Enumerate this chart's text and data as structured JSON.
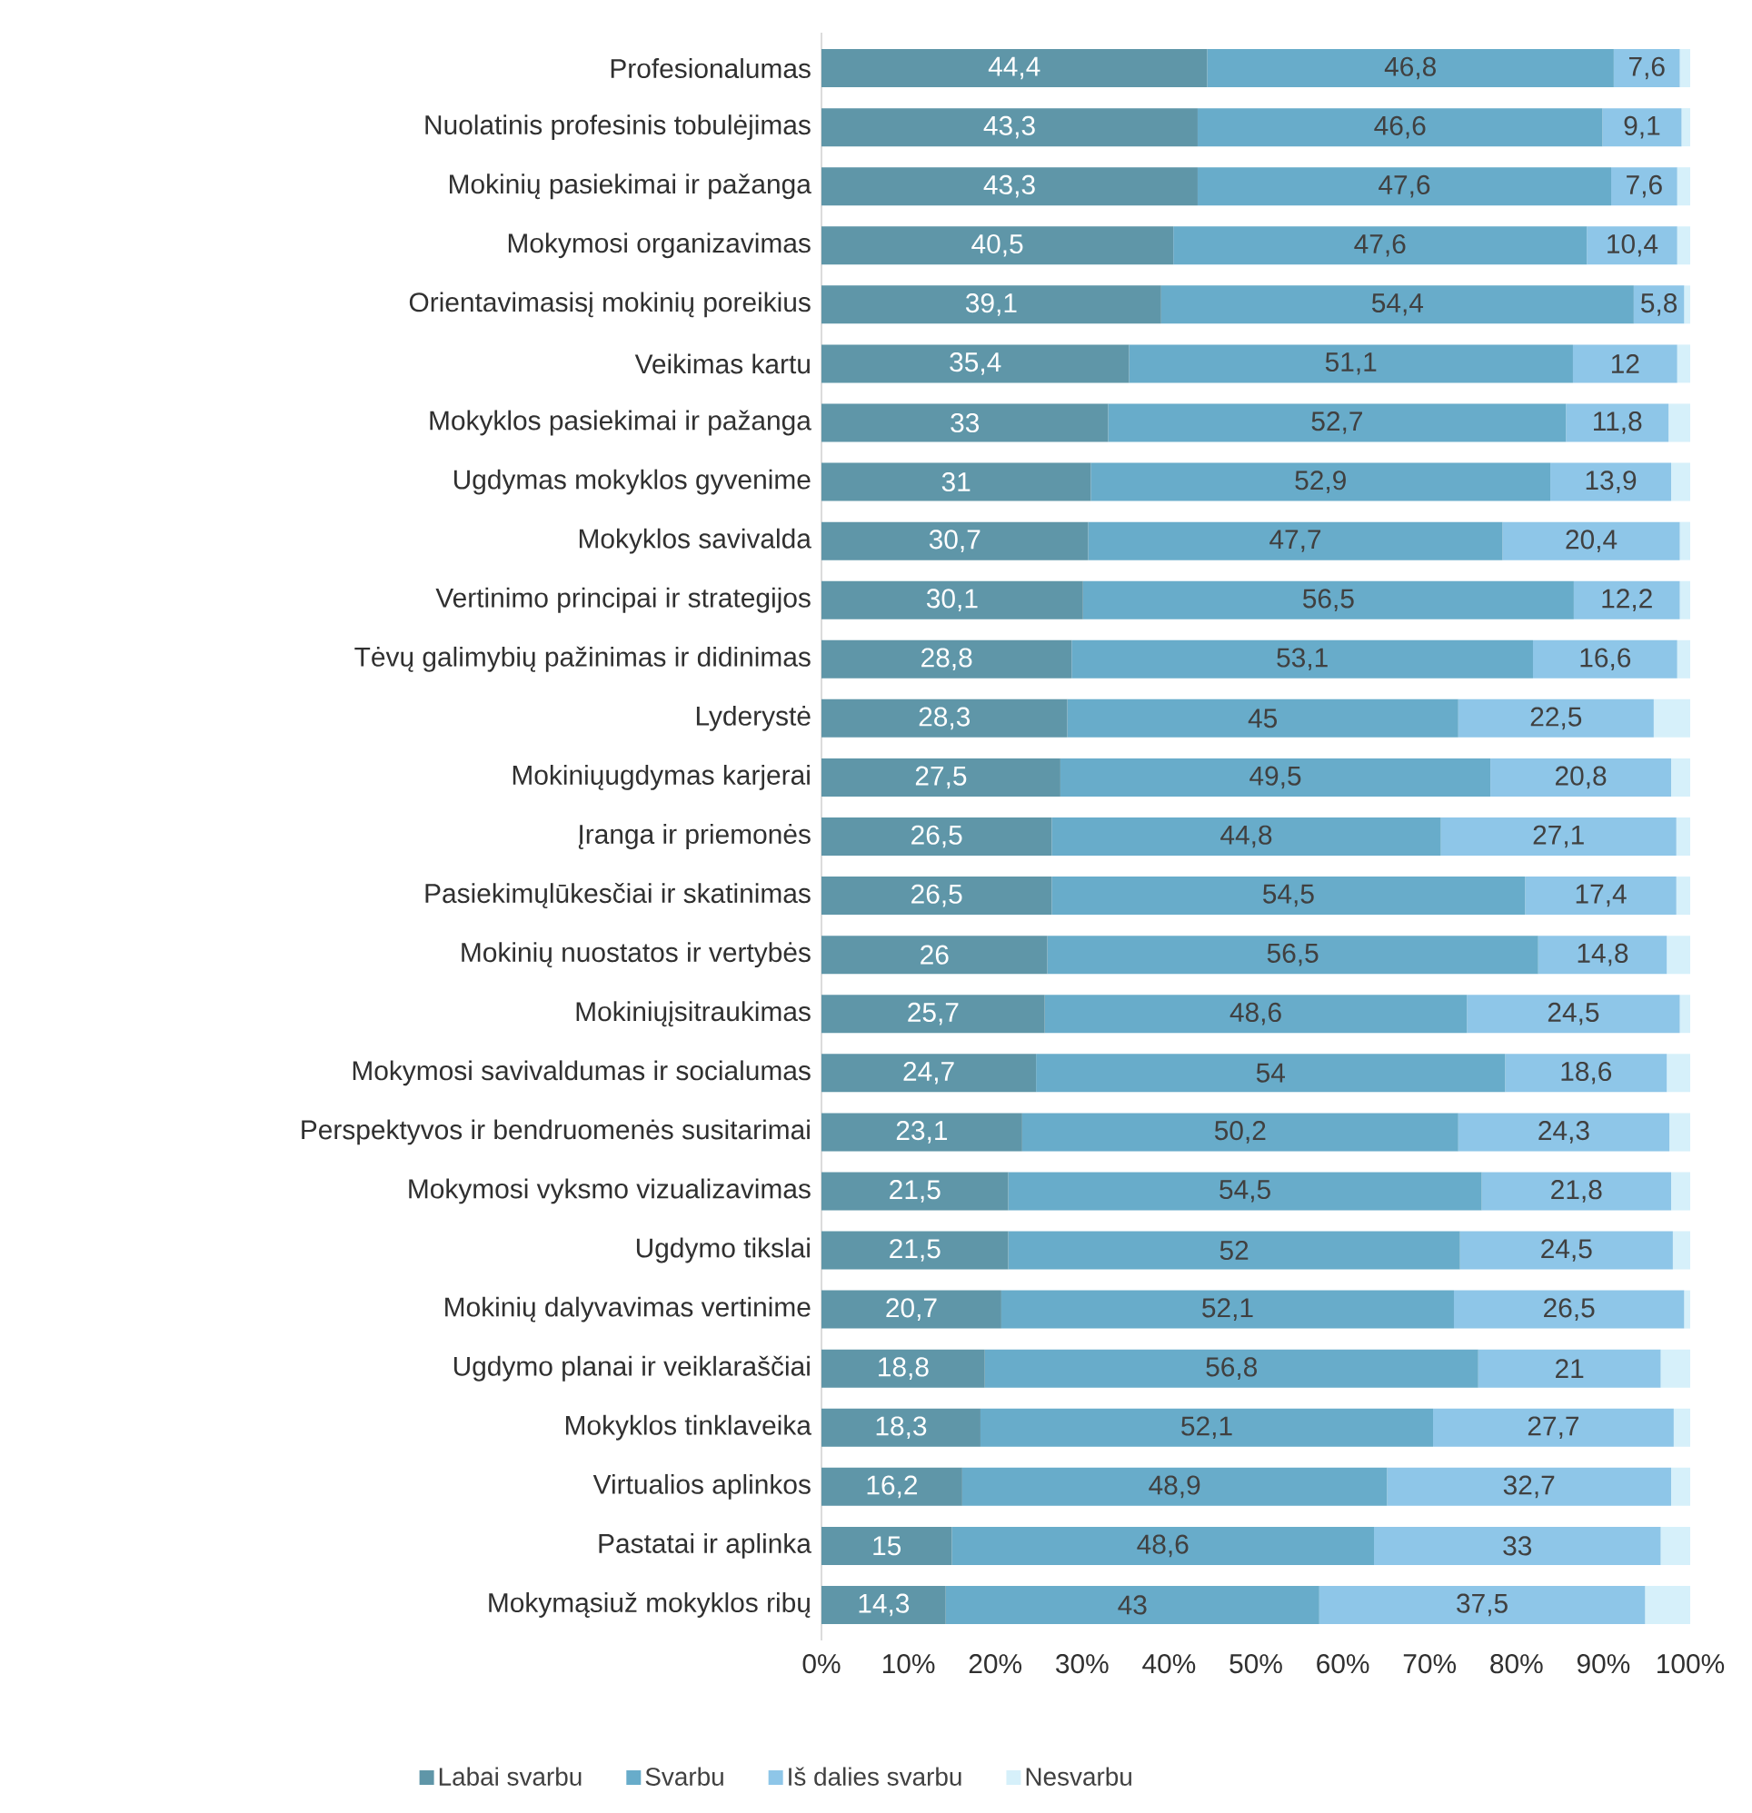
{
  "chart_data": {
    "type": "bar",
    "orientation": "horizontal",
    "stacked": true,
    "legend": "bottom",
    "categories": [
      "Profesionalumas",
      "Nuolatinis profesinis tobulėjimas",
      "Mokinių pasiekimai ir pažanga",
      "Mokymosi organizavimas",
      "Orientavimasisį mokinių poreikius",
      "Veikimas kartu",
      "Mokyklos pasiekimai ir pažanga",
      "Ugdymas mokyklos gyvenime",
      "Mokyklos savivalda",
      "Vertinimo principai ir strategijos",
      "Tėvų galimybių pažinimas ir didinimas",
      "Lyderystė",
      "Mokiniųugdymas karjerai",
      "Įranga ir priemonės",
      "Pasiekimųlūkesčiai ir skatinimas",
      "Mokinių nuostatos ir vertybės",
      "Mokiniųįsitraukimas",
      "Mokymosi savivaldumas ir socialumas",
      "Perspektyvos ir bendruomenės susitarimai",
      "Mokymosi vyksmo vizualizavimas",
      "Ugdymo tikslai",
      "Mokinių dalyvavimas vertinime",
      "Ugdymo planai ir veiklaraščiai",
      "Mokyklos tinklaveika",
      "Virtualios aplinkos",
      "Pastatai ir aplinka",
      "Mokymąsiuž mokyklos ribų"
    ],
    "xlim": [
      0,
      100
    ],
    "xticks": [
      {
        "value": 0,
        "label": "0%"
      },
      {
        "value": 10,
        "label": "10%"
      },
      {
        "value": 20,
        "label": "20%"
      },
      {
        "value": 30,
        "label": "30%"
      },
      {
        "value": 40,
        "label": "40%"
      },
      {
        "value": 50,
        "label": "50%"
      },
      {
        "value": 60,
        "label": "60%"
      },
      {
        "value": 70,
        "label": "70%"
      },
      {
        "value": 80,
        "label": "80%"
      },
      {
        "value": 90,
        "label": "90%"
      },
      {
        "value": 100,
        "label": "100%"
      }
    ],
    "series": [
      {
        "name": "Labai svarbu",
        "color": "#5f96a8",
        "values": [
          44.4,
          43.3,
          43.3,
          40.5,
          39.1,
          35.4,
          33,
          31,
          30.7,
          30.1,
          28.8,
          28.3,
          27.5,
          26.5,
          26.5,
          26,
          25.7,
          24.7,
          23.1,
          21.5,
          21.5,
          20.7,
          18.8,
          18.3,
          16.2,
          15,
          14.3
        ],
        "value_labels": [
          "44,4",
          "43,3",
          "43,3",
          "40,5",
          "39,1",
          "35,4",
          "33",
          "31",
          "30,7",
          "30,1",
          "28,8",
          "28,3",
          "27,5",
          "26,5",
          "26,5",
          "26",
          "25,7",
          "24,7",
          "23,1",
          "21,5",
          "21,5",
          "20,7",
          "18,8",
          "18,3",
          "16,2",
          "15",
          "14,3"
        ]
      },
      {
        "name": "Svarbu",
        "color": "#68acca",
        "values": [
          46.8,
          46.6,
          47.6,
          47.6,
          54.4,
          51.1,
          52.7,
          52.9,
          47.7,
          56.5,
          53.1,
          45,
          49.5,
          44.8,
          54.5,
          56.5,
          48.6,
          54,
          50.2,
          54.5,
          52,
          52.1,
          56.8,
          52.1,
          48.9,
          48.6,
          43
        ],
        "value_labels": [
          "46,8",
          "46,6",
          "47,6",
          "47,6",
          "54,4",
          "51,1",
          "52,7",
          "52,9",
          "47,7",
          "56,5",
          "53,1",
          "45",
          "49,5",
          "44,8",
          "54,5",
          "56,5",
          "48,6",
          "54",
          "50,2",
          "54,5",
          "52",
          "52,1",
          "56,8",
          "52,1",
          "48,9",
          "48,6",
          "43"
        ]
      },
      {
        "name": "Iš dalies svarbu",
        "color": "#8ec6e8",
        "values": [
          7.6,
          9.1,
          7.6,
          10.4,
          5.8,
          12,
          11.8,
          13.9,
          20.4,
          12.2,
          16.6,
          22.5,
          20.8,
          27.1,
          17.4,
          14.8,
          24.5,
          18.6,
          24.3,
          21.8,
          24.5,
          26.5,
          21,
          27.7,
          32.7,
          33,
          37.5
        ],
        "value_labels": [
          "7,6",
          "9,1",
          "7,6",
          "10,4",
          "5,8",
          "12",
          "11,8",
          "13,9",
          "20,4",
          "12,2",
          "16,6",
          "22,5",
          "20,8",
          "27,1",
          "17,4",
          "14,8",
          "24,5",
          "18,6",
          "24,3",
          "21,8",
          "24,5",
          "26,5",
          "21",
          "27,7",
          "32,7",
          "33",
          "37,5"
        ]
      },
      {
        "name": "Nesvarbu",
        "color": "#d6f0fa",
        "values": [
          1.2,
          1.0,
          1.5,
          1.5,
          0.7,
          1.5,
          2.5,
          2.2,
          1.2,
          1.2,
          1.5,
          4.2,
          2.2,
          1.6,
          1.6,
          2.7,
          1.2,
          2.7,
          2.4,
          2.2,
          2,
          0.7,
          3.4,
          1.9,
          2.2,
          3.4,
          5.2
        ]
      }
    ]
  }
}
